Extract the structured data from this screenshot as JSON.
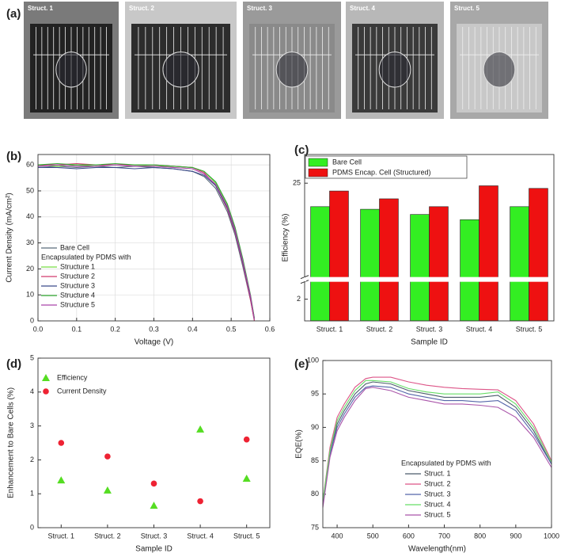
{
  "photos": {
    "panel_label": "(a)",
    "captions": [
      "Struct. 1",
      "Struct. 2",
      "Struct. 3",
      "Struct. 4",
      "Struct. 5"
    ]
  },
  "chart_data": [
    {
      "type": "line",
      "panel_label": "(b)",
      "x_label": "Voltage (V)",
      "y_label": "Current Density (mA/cm²)",
      "legend_title": "Encapsulated by PDMS with",
      "grid": true,
      "xlim": [
        0,
        0.6
      ],
      "xticks": [
        {
          "value": 0,
          "label": "0.0"
        },
        0.1,
        0.2,
        0.3,
        0.4,
        0.5,
        0.6
      ],
      "ylim": [
        0,
        64
      ],
      "yticks": [
        0,
        10,
        20,
        30,
        40,
        50,
        60
      ],
      "x": [
        0,
        0.05,
        0.1,
        0.15,
        0.2,
        0.25,
        0.3,
        0.35,
        0.4,
        0.43,
        0.46,
        0.49,
        0.51,
        0.53,
        0.55,
        0.56
      ],
      "series": [
        {
          "name": "Bare Cell",
          "color": "#5a6a7a",
          "values": [
            59,
            59.5,
            59,
            59.5,
            59,
            59.5,
            59,
            58.5,
            57.5,
            55.5,
            51,
            42,
            33,
            21,
            8,
            0
          ]
        },
        {
          "name": "Structure 1",
          "color": "#77dd44",
          "values": [
            60,
            59.5,
            60,
            59.5,
            60,
            60,
            59.5,
            59.5,
            59,
            57.5,
            53,
            44.5,
            35,
            23,
            9,
            0.5
          ]
        },
        {
          "name": "Structure 2",
          "color": "#d23a6e",
          "values": [
            60,
            60,
            60.5,
            60,
            60,
            60,
            60,
            59.5,
            59,
            57,
            52,
            43,
            34,
            22,
            8,
            0
          ]
        },
        {
          "name": "Structure 3",
          "color": "#3a4a8a",
          "values": [
            59,
            59,
            58.5,
            59,
            59,
            58.5,
            59,
            58.5,
            57.5,
            56,
            52,
            43.5,
            34.5,
            22.5,
            9,
            1
          ]
        },
        {
          "name": "Structure 4",
          "color": "#33aa33",
          "values": [
            60,
            60.5,
            60,
            60,
            60.5,
            60,
            60,
            59.5,
            59,
            57.5,
            53.5,
            45,
            36,
            24,
            10,
            1
          ]
        },
        {
          "name": "Structure 5",
          "color": "#aa44aa",
          "values": [
            59.5,
            60,
            59.5,
            59.5,
            60,
            59.5,
            59.5,
            59,
            58.5,
            56.5,
            52.5,
            44,
            35,
            23,
            9.5,
            0.5
          ]
        }
      ]
    },
    {
      "type": "bar",
      "panel_label": "(c)",
      "x_label": "Sample ID",
      "y_label": "Efficiency (%)",
      "categories": [
        "Struct. 1",
        "Struct. 2",
        "Struct. 3",
        "Struct. 4",
        "Struct. 5"
      ],
      "ylim_segments": [
        [
          0,
          3.6
        ],
        [
          21.4,
          26.1
        ]
      ],
      "yticks": [
        2,
        25
      ],
      "series": [
        {
          "name": "Bare Cell",
          "color": "#33ee22",
          "values": [
            24.1,
            24.0,
            23.8,
            23.6,
            24.1
          ]
        },
        {
          "name": "PDMS Encap. Cell  (Structured)",
          "color": "#ee1111",
          "values": [
            24.7,
            24.4,
            24.1,
            24.9,
            24.8
          ]
        }
      ]
    },
    {
      "type": "scatter",
      "panel_label": "(d)",
      "x_label": "Sample ID",
      "y_label": "Enhancement to Bare Cells (%)",
      "categories": [
        "Struct. 1",
        "Struct. 2",
        "Struct. 3",
        "Struct. 4",
        "Struct. 5"
      ],
      "ylim": [
        0,
        5
      ],
      "yticks": [
        0,
        1,
        2,
        3,
        4,
        5
      ],
      "series": [
        {
          "name": "Efficiency",
          "color": "#55dd22",
          "marker": "triangle",
          "values": [
            1.4,
            1.1,
            0.65,
            2.9,
            1.45
          ]
        },
        {
          "name": "Current Density",
          "color": "#ee2233",
          "marker": "circle",
          "values": [
            2.5,
            2.1,
            1.3,
            0.78,
            2.6
          ]
        }
      ]
    },
    {
      "type": "line",
      "panel_label": "(e)",
      "x_label": "Wavelength(nm)",
      "y_label": "EQE(%)",
      "legend_title": "Encapsulated by PDMS with",
      "grid": false,
      "xlim": [
        360,
        1000
      ],
      "xticks": [
        400,
        500,
        600,
        700,
        800,
        900,
        1000
      ],
      "ylim": [
        75,
        100
      ],
      "yticks": [
        75,
        80,
        85,
        90,
        95,
        100
      ],
      "x": [
        360,
        380,
        400,
        420,
        450,
        480,
        500,
        550,
        600,
        650,
        700,
        750,
        800,
        850,
        900,
        950,
        1000
      ],
      "series": [
        {
          "name": "Struct. 1",
          "color": "#4a5a6a",
          "values": [
            79,
            86,
            90.5,
            92.5,
            95,
            96.5,
            96.8,
            96.5,
            95.5,
            95,
            94.5,
            94.5,
            94.5,
            94.8,
            93,
            89.5,
            84.5
          ]
        },
        {
          "name": "Struct. 2",
          "color": "#dd5588",
          "values": [
            79,
            87,
            91.5,
            93.5,
            96,
            97.3,
            97.5,
            97.5,
            96.8,
            96.3,
            96,
            95.8,
            95.7,
            95.6,
            94,
            90.5,
            85
          ]
        },
        {
          "name": "Struct. 3",
          "color": "#5566aa",
          "values": [
            78.5,
            86,
            90,
            92,
            94.5,
            96,
            96.2,
            96,
            95,
            94.5,
            94,
            94,
            93.8,
            94,
            92.5,
            89,
            84.5
          ]
        },
        {
          "name": "Struct. 4",
          "color": "#66dd66",
          "values": [
            79,
            86.5,
            91,
            93,
            95.5,
            97,
            97,
            96.8,
            95.8,
            95.3,
            95,
            95,
            95,
            95.3,
            93.5,
            90,
            84.8
          ]
        },
        {
          "name": "Struct. 5",
          "color": "#aa55aa",
          "values": [
            78,
            85.5,
            89.5,
            91.5,
            94,
            95.8,
            96,
            95.5,
            94.5,
            94,
            93.5,
            93.5,
            93.3,
            93,
            91.5,
            88.5,
            84
          ]
        }
      ]
    }
  ]
}
